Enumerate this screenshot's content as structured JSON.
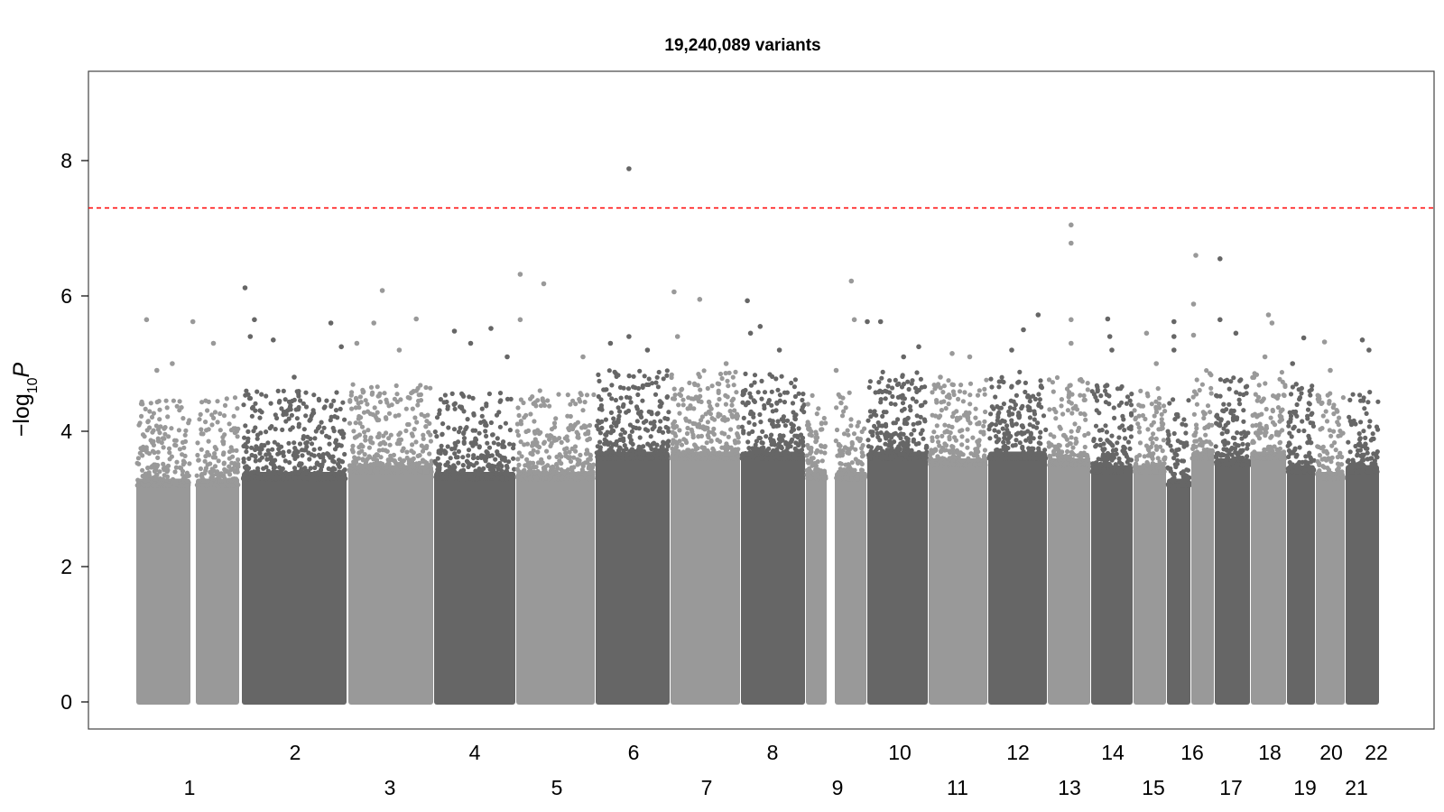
{
  "chart_data": {
    "type": "scatter",
    "subtype": "manhattan",
    "title": "19,240,089 variants",
    "xlabel": "",
    "ylabel_parts": {
      "prefix": "−log",
      "subscript": "10",
      "italic": "P"
    },
    "ylim": [
      0,
      9
    ],
    "yticks": [
      0,
      2,
      4,
      6,
      8
    ],
    "ytick_labels": [
      "0",
      "2",
      "4",
      "6",
      "8"
    ],
    "threshold": {
      "value": 7.3,
      "color": "#ff0000",
      "style": "dashed"
    },
    "colors": {
      "odd": "#999999",
      "even": "#666666",
      "axis": "#000000"
    },
    "chromosomes": [
      {
        "label": "1",
        "base": 3.5,
        "peaks": [
          [
            0.1,
            5.65
          ],
          [
            0.55,
            5.62
          ],
          [
            0.35,
            5.0
          ],
          [
            0.75,
            5.3
          ],
          [
            0.2,
            4.9
          ]
        ]
      },
      {
        "label": "2",
        "base": 3.6,
        "peaks": [
          [
            0.03,
            6.12
          ],
          [
            0.12,
            5.65
          ],
          [
            0.08,
            5.4
          ],
          [
            0.3,
            5.35
          ],
          [
            0.85,
            5.6
          ],
          [
            0.95,
            5.25
          ],
          [
            0.5,
            4.8
          ]
        ]
      },
      {
        "label": "3",
        "base": 3.7,
        "peaks": [
          [
            0.4,
            6.08
          ],
          [
            0.3,
            5.6
          ],
          [
            0.8,
            5.66
          ],
          [
            0.6,
            5.2
          ],
          [
            0.1,
            5.3
          ]
        ]
      },
      {
        "label": "4",
        "base": 3.6,
        "peaks": [
          [
            0.25,
            5.48
          ],
          [
            0.7,
            5.52
          ],
          [
            0.45,
            5.3
          ],
          [
            0.9,
            5.1
          ]
        ]
      },
      {
        "label": "5",
        "base": 3.6,
        "peaks": [
          [
            0.05,
            6.32
          ],
          [
            0.35,
            6.18
          ],
          [
            0.05,
            5.65
          ],
          [
            0.85,
            5.1
          ]
        ]
      },
      {
        "label": "6",
        "base": 3.9,
        "peaks": [
          [
            0.45,
            7.88
          ],
          [
            0.45,
            5.4
          ],
          [
            0.2,
            5.3
          ],
          [
            0.7,
            5.2
          ]
        ]
      },
      {
        "label": "7",
        "base": 3.9,
        "peaks": [
          [
            0.05,
            6.06
          ],
          [
            0.42,
            5.95
          ],
          [
            0.1,
            5.4
          ],
          [
            0.8,
            5.0
          ]
        ]
      },
      {
        "label": "8",
        "base": 3.9,
        "peaks": [
          [
            0.1,
            5.93
          ],
          [
            0.3,
            5.55
          ],
          [
            0.15,
            5.45
          ],
          [
            0.6,
            5.2
          ]
        ]
      },
      {
        "label": "9",
        "base": 3.6,
        "peaks": [
          [
            0.75,
            6.22
          ],
          [
            0.8,
            5.65
          ],
          [
            0.5,
            4.9
          ]
        ]
      },
      {
        "label": "10",
        "base": 3.9,
        "peaks": [
          [
            0.0,
            5.62
          ],
          [
            0.22,
            5.62
          ],
          [
            0.85,
            5.25
          ],
          [
            0.6,
            5.1
          ]
        ]
      },
      {
        "label": "11",
        "base": 3.8,
        "peaks": [
          [
            0.4,
            5.15
          ],
          [
            0.7,
            5.1
          ],
          [
            0.2,
            4.8
          ]
        ]
      },
      {
        "label": "12",
        "base": 3.9,
        "peaks": [
          [
            0.85,
            5.72
          ],
          [
            0.6,
            5.5
          ],
          [
            0.4,
            5.2
          ]
        ]
      },
      {
        "label": "13",
        "base": 3.8,
        "peaks": [
          [
            0.55,
            7.05
          ],
          [
            0.55,
            6.78
          ],
          [
            0.55,
            5.65
          ],
          [
            0.55,
            5.3
          ]
        ]
      },
      {
        "label": "14",
        "base": 3.7,
        "peaks": [
          [
            0.4,
            5.66
          ],
          [
            0.45,
            5.4
          ],
          [
            0.5,
            5.2
          ]
        ]
      },
      {
        "label": "15",
        "base": 3.7,
        "peaks": [
          [
            0.4,
            5.45
          ],
          [
            0.7,
            5.0
          ]
        ]
      },
      {
        "label": "16",
        "base": 3.5,
        "peaks": [
          [
            0.3,
            5.62
          ],
          [
            0.3,
            5.4
          ],
          [
            0.3,
            5.2
          ]
        ]
      },
      {
        "label": "17",
        "base": 3.9,
        "peaks": [
          [
            0.2,
            6.6
          ],
          [
            0.1,
            5.88
          ],
          [
            0.1,
            5.42
          ]
        ]
      },
      {
        "label": "18",
        "base": 3.8,
        "peaks": [
          [
            0.15,
            6.55
          ],
          [
            0.15,
            5.65
          ],
          [
            0.6,
            5.45
          ]
        ]
      },
      {
        "label": "19",
        "base": 3.9,
        "peaks": [
          [
            0.5,
            5.72
          ],
          [
            0.6,
            5.6
          ],
          [
            0.4,
            5.1
          ]
        ]
      },
      {
        "label": "20",
        "base": 3.7,
        "peaks": [
          [
            0.6,
            5.38
          ],
          [
            0.2,
            5.0
          ]
        ]
      },
      {
        "label": "21",
        "base": 3.6,
        "peaks": [
          [
            0.3,
            5.32
          ],
          [
            0.5,
            4.9
          ]
        ]
      },
      {
        "label": "22",
        "base": 3.7,
        "peaks": [
          [
            0.5,
            5.35
          ],
          [
            0.7,
            5.2
          ]
        ]
      }
    ]
  }
}
